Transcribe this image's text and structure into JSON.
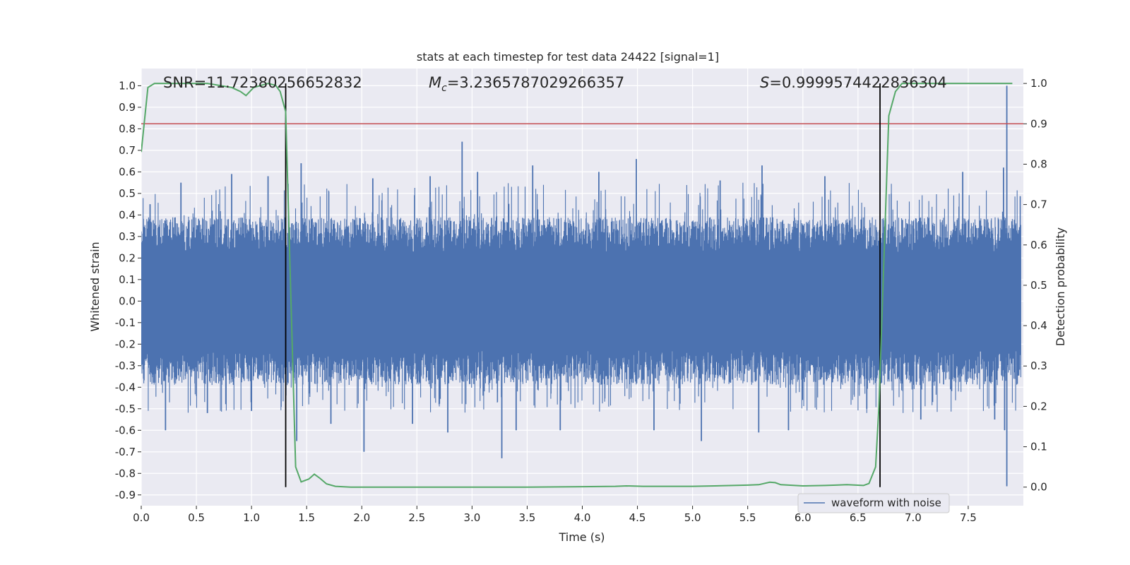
{
  "chart_data": {
    "type": "line",
    "title": "stats at each timestep for test data 24422 [signal=1]",
    "xlabel": "Time (s)",
    "ylabel": "Whitened strain",
    "y2label": "Detection probability",
    "xlim": [
      0.0,
      8.0
    ],
    "ylim": [
      -0.95,
      1.08
    ],
    "y2lim": [
      -0.046,
      1.037
    ],
    "xticks": [
      "0.0",
      "0.5",
      "1.0",
      "1.5",
      "2.0",
      "2.5",
      "3.0",
      "3.5",
      "4.0",
      "4.5",
      "5.0",
      "5.5",
      "6.0",
      "6.5",
      "7.0",
      "7.5"
    ],
    "yticks": [
      "1.0",
      "0.9",
      "0.8",
      "0.7",
      "0.6",
      "0.5",
      "0.4",
      "0.3",
      "0.2",
      "0.1",
      "0.0",
      "-0.1",
      "-0.2",
      "-0.3",
      "-0.4",
      "-0.5",
      "-0.6",
      "-0.7",
      "-0.8",
      "-0.9"
    ],
    "y2ticks": [
      "1.0",
      "0.9",
      "0.8",
      "0.7",
      "0.6",
      "0.5",
      "0.4",
      "0.3",
      "0.2",
      "0.1",
      "0.0"
    ],
    "grid": true,
    "legend_position": "lower-right",
    "annotations": {
      "snr": "SNR=11.72380256652832",
      "mc_symbol": "M",
      "mc_sub": "c",
      "mc_value": "=3.2365787029266357",
      "s_symbol": "S",
      "s_value": "=0.9999574422836304"
    },
    "series": [
      {
        "name": "waveform with noise",
        "axis": "left",
        "color": "#4c72b0",
        "noise_envelope": {
          "typical_high": 0.3,
          "typical_low": -0.3,
          "peak_high": 1.0,
          "peak_low": -0.86
        },
        "spikes": [
          {
            "x": 0.08,
            "y": 0.45
          },
          {
            "x": 0.22,
            "y": -0.6
          },
          {
            "x": 0.36,
            "y": 0.55
          },
          {
            "x": 0.6,
            "y": -0.52
          },
          {
            "x": 0.82,
            "y": 0.59
          },
          {
            "x": 1.0,
            "y": -0.51
          },
          {
            "x": 1.15,
            "y": 0.58
          },
          {
            "x": 1.41,
            "y": -0.65
          },
          {
            "x": 1.45,
            "y": 0.64
          },
          {
            "x": 1.72,
            "y": -0.57
          },
          {
            "x": 2.02,
            "y": -0.7
          },
          {
            "x": 2.1,
            "y": 0.57
          },
          {
            "x": 2.46,
            "y": -0.57
          },
          {
            "x": 2.62,
            "y": 0.58
          },
          {
            "x": 2.78,
            "y": -0.61
          },
          {
            "x": 2.91,
            "y": 0.74
          },
          {
            "x": 3.05,
            "y": 0.6
          },
          {
            "x": 3.27,
            "y": -0.73
          },
          {
            "x": 3.4,
            "y": -0.6
          },
          {
            "x": 3.55,
            "y": 0.63
          },
          {
            "x": 3.8,
            "y": -0.6
          },
          {
            "x": 4.15,
            "y": 0.6
          },
          {
            "x": 4.49,
            "y": 0.66
          },
          {
            "x": 4.65,
            "y": -0.6
          },
          {
            "x": 5.08,
            "y": -0.65
          },
          {
            "x": 5.25,
            "y": 0.56
          },
          {
            "x": 5.6,
            "y": -0.61
          },
          {
            "x": 5.63,
            "y": 0.63
          },
          {
            "x": 5.87,
            "y": -0.6
          },
          {
            "x": 6.2,
            "y": 0.58
          },
          {
            "x": 6.58,
            "y": -0.5
          },
          {
            "x": 7.07,
            "y": -0.55
          },
          {
            "x": 7.45,
            "y": 0.6
          },
          {
            "x": 7.74,
            "y": -0.55
          },
          {
            "x": 7.82,
            "y": 0.62
          },
          {
            "x": 7.83,
            "y": -0.6
          },
          {
            "x": 7.85,
            "y": 1.0
          },
          {
            "x": 7.85,
            "y": -0.86
          }
        ]
      },
      {
        "name": "",
        "axis": "right",
        "color": "#55a868",
        "x": [
          0.0,
          0.06,
          0.12,
          0.3,
          0.6,
          0.82,
          0.9,
          0.95,
          1.02,
          1.15,
          1.22,
          1.26,
          1.31,
          1.4,
          1.45,
          1.52,
          1.57,
          1.62,
          1.68,
          1.76,
          1.9,
          2.5,
          3.0,
          3.5,
          4.0,
          4.3,
          4.4,
          4.55,
          5.0,
          5.2,
          5.5,
          5.6,
          5.7,
          5.75,
          5.8,
          6.0,
          6.2,
          6.3,
          6.4,
          6.55,
          6.6,
          6.66,
          6.69,
          6.78,
          6.84,
          6.9,
          7.0,
          7.3,
          7.5,
          7.7,
          7.9
        ],
        "y": [
          0.83,
          0.99,
          1.0,
          1.0,
          1.0,
          0.99,
          0.98,
          0.97,
          0.99,
          1.0,
          0.995,
          0.98,
          0.93,
          0.05,
          0.013,
          0.02,
          0.032,
          0.022,
          0.008,
          0.002,
          0.0,
          0.0,
          0.0,
          0.0,
          0.001,
          0.002,
          0.003,
          0.002,
          0.002,
          0.003,
          0.005,
          0.006,
          0.012,
          0.011,
          0.006,
          0.003,
          0.004,
          0.005,
          0.006,
          0.004,
          0.009,
          0.05,
          0.2,
          0.92,
          0.98,
          1.0,
          1.0,
          1.0,
          1.0,
          1.0,
          1.0
        ]
      }
    ],
    "threshold_right_y": 0.9,
    "threshold_color": "#c44e52",
    "vertical_lines_x": [
      1.31,
      6.7
    ]
  }
}
